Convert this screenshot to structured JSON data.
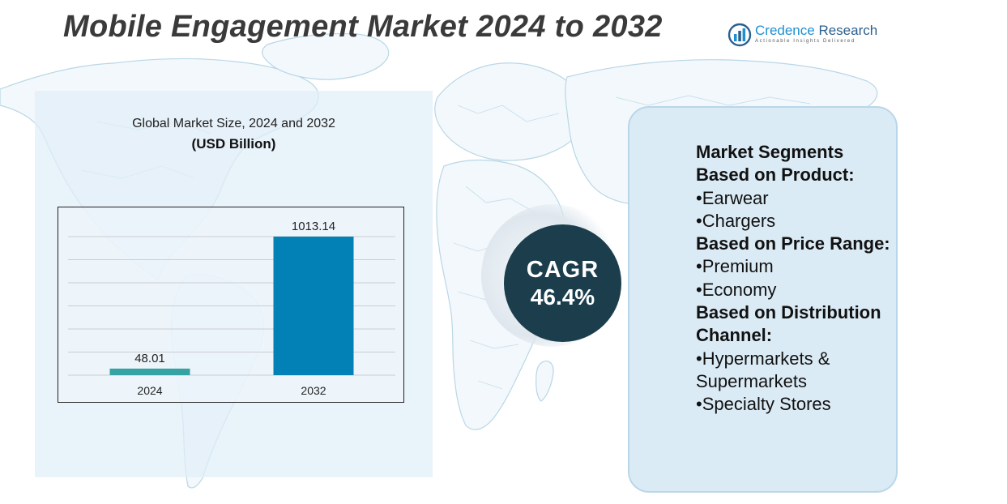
{
  "header": {
    "title": "Mobile Engagement Market 2024 to 2032"
  },
  "logo": {
    "name_part1": "Credence",
    "name_part2": " Research",
    "tagline": "Actionable Insights Delivered",
    "icon": "bar-chart-circle-icon"
  },
  "chart_data": {
    "type": "bar",
    "title": "Global Market Size, 2024 and 2032",
    "subtitle": "(USD Billion)",
    "categories": [
      "2024",
      "2032"
    ],
    "values": [
      48.01,
      1013.14
    ],
    "value_labels": [
      "48.01",
      "1013.14"
    ],
    "colors": [
      "#35a2a3",
      "#0281b6"
    ],
    "grid": true,
    "legend": "none"
  },
  "cagr": {
    "label": "CAGR",
    "value": "46.4%"
  },
  "segments": {
    "lines": [
      {
        "text": "Market Segments",
        "kind": "heading"
      },
      {
        "text": "Based on Product:",
        "kind": "heading"
      },
      {
        "text": "•Earwear",
        "kind": "item"
      },
      {
        "text": "•Chargers",
        "kind": "item"
      },
      {
        "text": "Based on Price Range:",
        "kind": "heading"
      },
      {
        "text": "•Premium",
        "kind": "item"
      },
      {
        "text": "•Economy",
        "kind": "item"
      },
      {
        "text": "Based on Distribution Channel:",
        "kind": "heading"
      },
      {
        "text": "•Hypermarkets & Supermarkets",
        "kind": "item"
      },
      {
        "text": "•Specialty Stores",
        "kind": "item"
      }
    ]
  },
  "colors": {
    "title": "#3a3a3a",
    "cagr_circle": "#1b3d4c",
    "panel": "#dbebf5",
    "map_stroke": "#b9d7e6"
  }
}
